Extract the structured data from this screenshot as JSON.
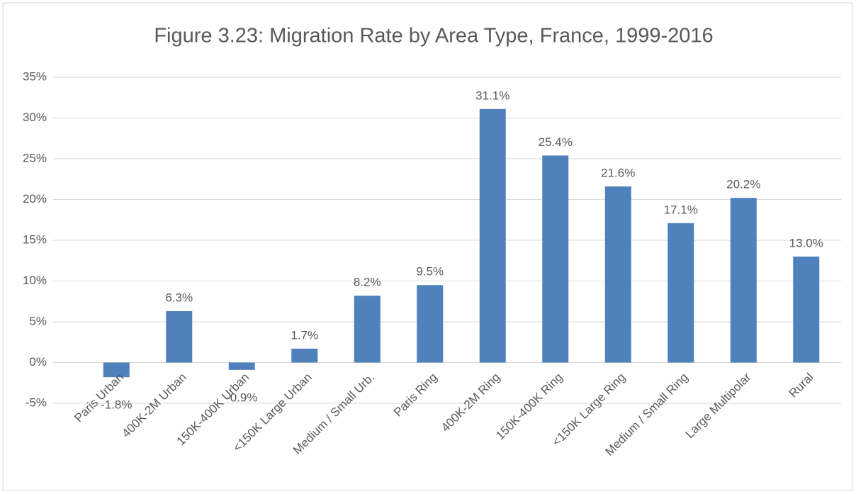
{
  "chart_data": {
    "type": "bar",
    "title": "Figure 3.23: Migration Rate by Area Type, France, 1999-2016",
    "categories": [
      "Paris Urban",
      "400K-2M Urban",
      "150K-400K Urban",
      "<150K Large Urban",
      "Medium / Small Urb.",
      "Paris Ring",
      "400K-2M Ring",
      "150K-400K Ring",
      "<150K Large Ring",
      "Medium / Small Ring",
      "Large Multipolar",
      "Rural"
    ],
    "values": [
      -1.8,
      6.3,
      -0.9,
      1.7,
      8.2,
      9.5,
      31.1,
      25.4,
      21.6,
      17.1,
      20.2,
      13.0
    ],
    "value_labels": [
      "-1.8%",
      "6.3%",
      "-0.9%",
      "1.7%",
      "8.2%",
      "9.5%",
      "31.1%",
      "25.4%",
      "21.6%",
      "17.1%",
      "20.2%",
      "13.0%"
    ],
    "color": "#4f81bd",
    "ylim": [
      -5,
      35
    ],
    "yticks": [
      {
        "value": -5,
        "label": "-5%"
      },
      {
        "value": 0,
        "label": "0%"
      },
      {
        "value": 5,
        "label": "5%"
      },
      {
        "value": 10,
        "label": "10%"
      },
      {
        "value": 15,
        "label": "15%"
      },
      {
        "value": 20,
        "label": "20%"
      },
      {
        "value": 25,
        "label": "25%"
      },
      {
        "value": 30,
        "label": "30%"
      },
      {
        "value": 35,
        "label": "35%"
      }
    ],
    "grid": true
  }
}
